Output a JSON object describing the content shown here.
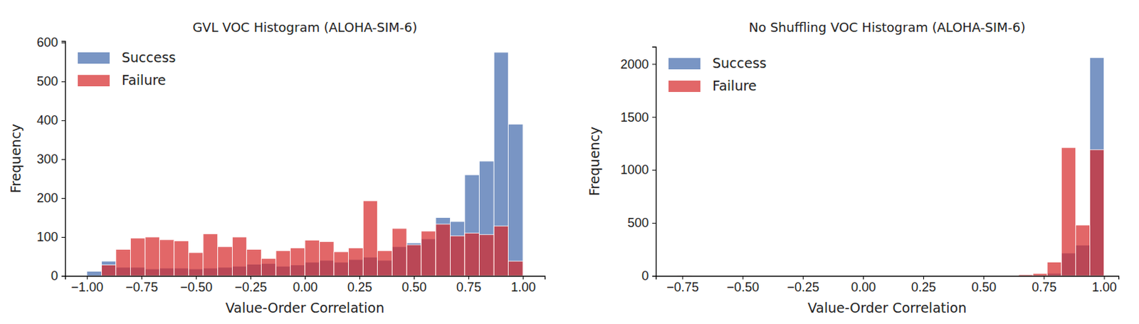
{
  "chart_data": [
    {
      "type": "histogram",
      "title": "GVL VOC Histogram (ALOHA-SIM-6)",
      "x_label": "Value-Order Correlation",
      "y_label": "Frequency",
      "bins": [
        -1,
        -0.933,
        -0.867,
        -0.8,
        -0.733,
        -0.667,
        -0.6,
        -0.533,
        -0.467,
        -0.4,
        -0.333,
        -0.267,
        -0.2,
        -0.133,
        -0.067,
        0,
        0.067,
        0.133,
        0.2,
        0.267,
        0.333,
        0.4,
        0.467,
        0.533,
        0.6,
        0.667,
        0.733,
        0.8,
        0.867,
        0.933,
        1.0
      ],
      "series": [
        {
          "name": "Success",
          "color": "#4c72b0",
          "values": [
            12,
            38,
            22,
            22,
            18,
            20,
            20,
            18,
            20,
            22,
            25,
            30,
            32,
            25,
            28,
            35,
            40,
            35,
            42,
            48,
            40,
            75,
            85,
            95,
            150,
            140,
            260,
            295,
            575,
            390
          ]
        },
        {
          "name": "Failure",
          "color": "#d62728",
          "values": [
            0,
            28,
            68,
            97,
            100,
            93,
            90,
            60,
            108,
            75,
            100,
            68,
            45,
            65,
            72,
            92,
            88,
            62,
            72,
            193,
            65,
            122,
            80,
            115,
            133,
            103,
            110,
            106,
            128,
            38
          ]
        }
      ],
      "xlim": [
        -1.1,
        1.1
      ],
      "xticks": [
        {
          "value": -1,
          "label": "−1.00"
        },
        {
          "value": -0.75,
          "label": "−0.75"
        },
        {
          "value": -0.5,
          "label": "−0.50"
        },
        {
          "value": -0.25,
          "label": "−0.25"
        },
        {
          "value": 0,
          "label": "0.00"
        },
        {
          "value": 0.25,
          "label": "0.25"
        },
        {
          "value": 0.5,
          "label": "0.50"
        },
        {
          "value": 0.75,
          "label": "0.75"
        },
        {
          "value": 1,
          "label": "1.00"
        }
      ],
      "ylim": [
        0,
        604
      ],
      "yticks": [
        0,
        100,
        200,
        300,
        400,
        500,
        600
      ],
      "legend": "upper left"
    },
    {
      "type": "histogram",
      "title": "No Shuffling VOC Histogram (ALOHA-SIM-6)",
      "x_label": "Value-Order Correlation",
      "y_label": "Frequency",
      "bins": [
        -0.77,
        -0.711,
        -0.652,
        -0.593,
        -0.534,
        -0.475,
        -0.416,
        -0.357,
        -0.298,
        -0.239,
        -0.18,
        -0.121,
        -0.062,
        -0.003,
        0.056,
        0.115,
        0.174,
        0.233,
        0.292,
        0.351,
        0.41,
        0.469,
        0.528,
        0.587,
        0.646,
        0.705,
        0.764,
        0.823,
        0.882,
        0.941,
        1.0
      ],
      "series": [
        {
          "name": "Success",
          "color": "#4c72b0",
          "values": [
            0,
            0,
            0,
            0,
            0,
            0,
            0,
            0,
            0,
            0,
            0,
            0,
            0,
            0,
            0,
            0,
            0,
            0,
            0,
            0,
            0,
            0,
            0,
            0,
            3,
            8,
            25,
            215,
            290,
            2060
          ]
        },
        {
          "name": "Failure",
          "color": "#d62728",
          "values": [
            1,
            0,
            0,
            0,
            0,
            0,
            0,
            0,
            0,
            0,
            0,
            0,
            0,
            0,
            0,
            0,
            0,
            0,
            0,
            0,
            0,
            0,
            0,
            0,
            12,
            22,
            130,
            1210,
            480,
            1190
          ]
        }
      ],
      "xlim": [
        -0.86,
        1.06
      ],
      "xticks": [
        {
          "value": -0.75,
          "label": "−0.75"
        },
        {
          "value": -0.5,
          "label": "−0.50"
        },
        {
          "value": -0.25,
          "label": "−0.25"
        },
        {
          "value": 0,
          "label": "0.00"
        },
        {
          "value": 0.25,
          "label": "0.25"
        },
        {
          "value": 0.5,
          "label": "0.50"
        },
        {
          "value": 0.75,
          "label": "0.75"
        },
        {
          "value": 1,
          "label": "1.00"
        }
      ],
      "ylim": [
        0,
        2163
      ],
      "yticks": [
        0,
        500,
        1000,
        1500,
        2000
      ],
      "legend": "upper left"
    }
  ]
}
